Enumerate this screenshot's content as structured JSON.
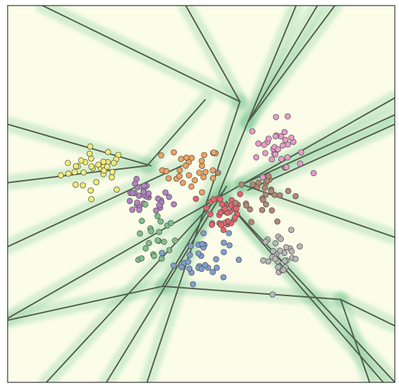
{
  "chart_data": {
    "type": "scatter",
    "title": "",
    "xlabel": "",
    "ylabel": "",
    "grid": false,
    "legend": "none",
    "xlim": [
      0,
      1
    ],
    "ylim": [
      0,
      1
    ],
    "background_color": "#fbfde9",
    "band_color": "#74c491",
    "boundary_color": "#555c50",
    "series": [
      {
        "color": "#f2ec74",
        "center": [
          0.23,
          0.565
        ],
        "spread": [
          0.045,
          0.03
        ],
        "count": 34
      },
      {
        "color": "#f0a25e",
        "center": [
          0.475,
          0.565
        ],
        "spread": [
          0.038,
          0.03
        ],
        "count": 30
      },
      {
        "color": "#b382c3",
        "center": [
          0.355,
          0.485
        ],
        "spread": [
          0.035,
          0.022
        ],
        "count": 32
      },
      {
        "color": "#7fc18a",
        "center": [
          0.385,
          0.385
        ],
        "spread": [
          0.025,
          0.04
        ],
        "count": 22
      },
      {
        "color": "#e8636a",
        "center": [
          0.555,
          0.455
        ],
        "spread": [
          0.03,
          0.03
        ],
        "count": 38
      },
      {
        "color": "#b28870",
        "center": [
          0.665,
          0.51
        ],
        "spread": [
          0.035,
          0.04
        ],
        "count": 30
      },
      {
        "color": "#e89cc8",
        "center": [
          0.695,
          0.625
        ],
        "spread": [
          0.035,
          0.035
        ],
        "count": 32
      },
      {
        "color": "#7f9fcf",
        "center": [
          0.5,
          0.335
        ],
        "spread": [
          0.035,
          0.035
        ],
        "count": 32
      },
      {
        "color": "#b8b8b8",
        "center": [
          0.71,
          0.335
        ],
        "spread": [
          0.025,
          0.03
        ],
        "count": 30
      }
    ],
    "boundaries": [
      [
        [
          0.09,
          1.0
        ],
        [
          0.6,
          0.745
        ]
      ],
      [
        [
          0.46,
          1.0
        ],
        [
          0.6,
          0.745
        ]
      ],
      [
        [
          0.6,
          0.745
        ],
        [
          0.36,
          0.0
        ]
      ],
      [
        [
          0.745,
          1.0
        ],
        [
          0.62,
          0.69
        ]
      ],
      [
        [
          0.8,
          1.0
        ],
        [
          0.62,
          0.69
        ]
      ],
      [
        [
          0.845,
          1.0
        ],
        [
          0.62,
          0.69
        ]
      ],
      [
        [
          0.62,
          0.69
        ],
        [
          0.545,
          0.5
        ]
      ],
      [
        [
          0.0,
          0.685
        ],
        [
          0.37,
          0.575
        ]
      ],
      [
        [
          0.0,
          0.53
        ],
        [
          0.36,
          0.575
        ]
      ],
      [
        [
          0.36,
          0.575
        ],
        [
          0.51,
          0.75
        ]
      ],
      [
        [
          0.0,
          0.36
        ],
        [
          0.45,
          0.575
        ]
      ],
      [
        [
          0.0,
          0.17
        ],
        [
          0.595,
          0.52
        ]
      ],
      [
        [
          0.1,
          0.0
        ],
        [
          0.56,
          0.51
        ]
      ],
      [
        [
          0.255,
          0.0
        ],
        [
          0.565,
          0.52
        ]
      ],
      [
        [
          1.0,
          0.755
        ],
        [
          0.605,
          0.525
        ]
      ],
      [
        [
          1.0,
          0.71
        ],
        [
          0.605,
          0.525
        ]
      ],
      [
        [
          1.0,
          0.685
        ],
        [
          0.62,
          0.51
        ]
      ],
      [
        [
          0.605,
          0.525
        ],
        [
          1.0,
          0.385
        ]
      ],
      [
        [
          0.565,
          0.48
        ],
        [
          0.97,
          0.0
        ]
      ],
      [
        [
          0.565,
          0.48
        ],
        [
          1.0,
          0.0
        ]
      ],
      [
        [
          0.4,
          0.255
        ],
        [
          0.86,
          0.22
        ]
      ],
      [
        [
          0.86,
          0.22
        ],
        [
          1.0,
          0.15
        ]
      ],
      [
        [
          0.86,
          0.22
        ],
        [
          0.935,
          0.0
        ]
      ],
      [
        [
          0.0,
          0.165
        ],
        [
          0.4,
          0.255
        ]
      ],
      [
        [
          0.4,
          0.255
        ],
        [
          0.53,
          0.48
        ]
      ]
    ]
  }
}
